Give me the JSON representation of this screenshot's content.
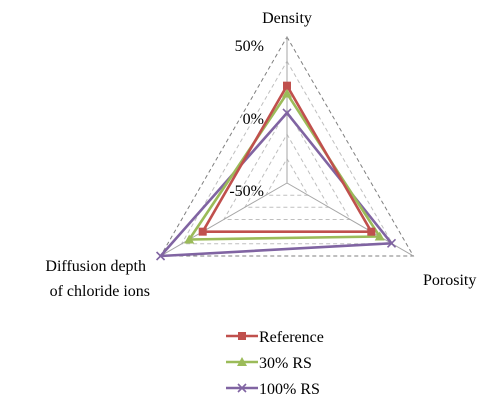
{
  "chart_data": {
    "type": "radar",
    "axes": [
      "Density",
      "Porosity",
      "Diffusion depth\nof chloride ions"
    ],
    "ticks": [
      "50%",
      "0%",
      "-50%"
    ],
    "range": [
      -100,
      50
    ],
    "gridlines": [
      -75,
      -50,
      -25,
      0,
      25,
      50
    ],
    "series": [
      {
        "name": "Reference",
        "values": [
          0,
          0,
          0
        ],
        "color": "#c0504d",
        "marker": "square"
      },
      {
        "name": "30% RS",
        "values": [
          -8,
          10,
          16
        ],
        "color": "#9bbb59",
        "marker": "triangle"
      },
      {
        "name": "100% RS",
        "values": [
          -28,
          24,
          50
        ],
        "color": "#8064a2",
        "marker": "x"
      }
    ],
    "legend_position": "bottom"
  }
}
